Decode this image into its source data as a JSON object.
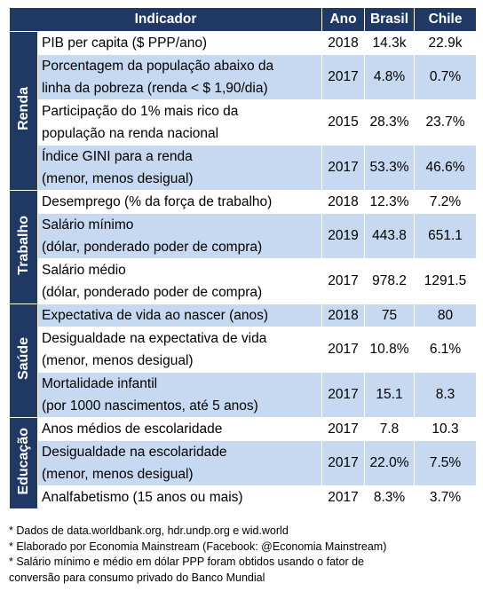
{
  "header": {
    "indicator": "Indicador",
    "year": "Ano",
    "brasil": "Brasil",
    "chile": "Chile"
  },
  "groups": [
    {
      "label": "Renda",
      "rows": [
        {
          "indicator": [
            "PIB per capita ($ PPP/ano)"
          ],
          "year": "2018",
          "brasil": "14.3k",
          "chile": "22.9k"
        },
        {
          "indicator": [
            "Porcentagem da população abaixo da",
            "linha da pobreza (renda < $ 1,90/dia)"
          ],
          "year": "2017",
          "brasil": "4.8%",
          "chile": "0.7%"
        },
        {
          "indicator": [
            "Participação do 1% mais rico da",
            "população na renda nacional"
          ],
          "year": "2015",
          "brasil": "28.3%",
          "chile": "23.7%"
        },
        {
          "indicator": [
            "Índice GINI para a renda",
            "(menor, menos desigual)"
          ],
          "year": "2017",
          "brasil": "53.3%",
          "chile": "46.6%"
        }
      ]
    },
    {
      "label": "Trabalho",
      "rows": [
        {
          "indicator": [
            "Desemprego (% da força de trabalho)"
          ],
          "year": "2018",
          "brasil": "12.3%",
          "chile": "7.2%"
        },
        {
          "indicator": [
            "Salário mínimo",
            "(dólar, ponderado poder de compra)"
          ],
          "year": "2019",
          "brasil": "443.8",
          "chile": "651.1"
        },
        {
          "indicator": [
            "Salário médio",
            "(dólar, ponderado poder de compra)"
          ],
          "year": "2017",
          "brasil": "978.2",
          "chile": "1291.5"
        }
      ]
    },
    {
      "label": "Saúde",
      "rows": [
        {
          "indicator": [
            "Expectativa de vida ao nascer (anos)"
          ],
          "year": "2018",
          "brasil": "75",
          "chile": "80"
        },
        {
          "indicator": [
            "Desigualdade na expectativa de vida",
            "(menor, menos desigual)"
          ],
          "year": "2017",
          "brasil": "10.8%",
          "chile": "6.1%"
        },
        {
          "indicator": [
            "Mortalidade infantil",
            "(por 1000 nascimentos, até 5 anos)"
          ],
          "year": "2017",
          "brasil": "15.1",
          "chile": "8.3"
        }
      ]
    },
    {
      "label": "Educação",
      "rows": [
        {
          "indicator": [
            "Anos médios de escolaridade"
          ],
          "year": "2017",
          "brasil": "7.8",
          "chile": "10.3"
        },
        {
          "indicator": [
            "Desigualdade na escolaridade",
            "(menor, menos desigual)"
          ],
          "year": "2017",
          "brasil": "22.0%",
          "chile": "7.5%"
        },
        {
          "indicator": [
            "Analfabetismo (15 anos ou mais)"
          ],
          "year": "2017",
          "brasil": "8.3%",
          "chile": "3.7%"
        }
      ]
    }
  ],
  "footnotes": [
    [
      "* Dados de data.worldbank.org, hdr.undp.org e wid.world"
    ],
    [
      "* Elaborado por Economia Mainstream (Facebook: @Economia Mainstream)"
    ],
    [
      "* Salário mínimo e médio em dólar PPP foram obtidos usando o fator de",
      "conversão para consumo privado do Banco Mundial"
    ]
  ]
}
